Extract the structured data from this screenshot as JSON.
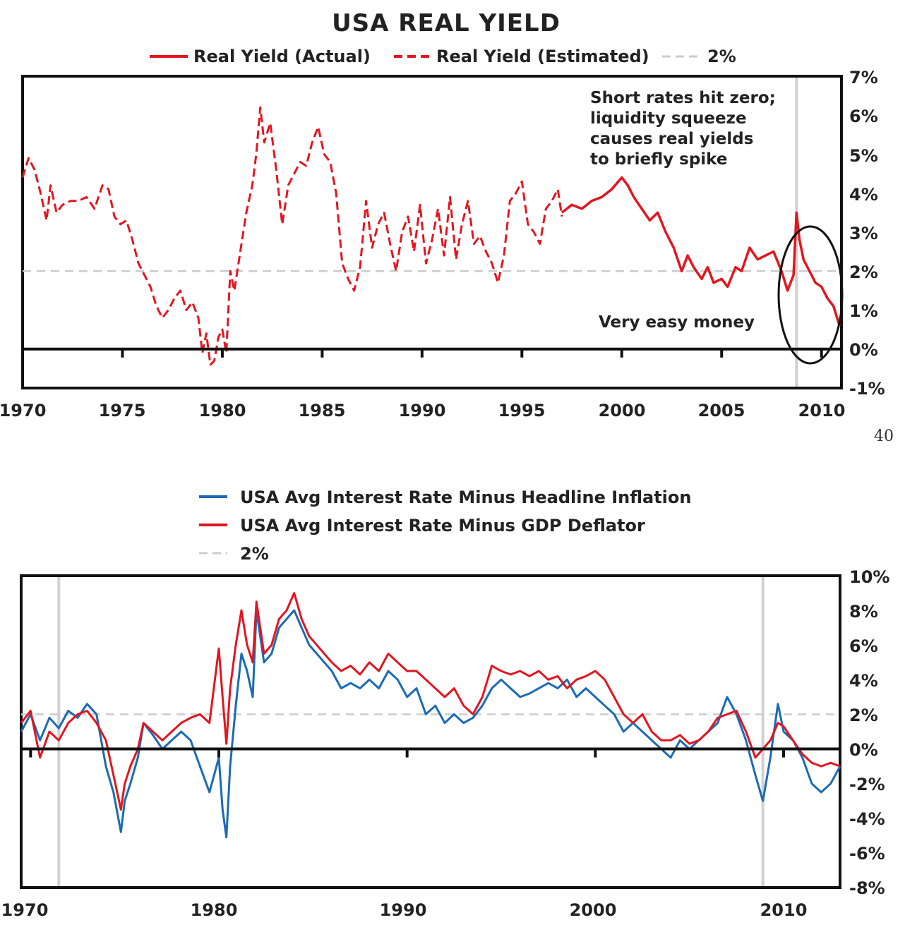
{
  "page_number": "40",
  "chart_data": [
    {
      "type": "line",
      "title": "USA REAL YIELD",
      "legend": [
        {
          "label": "Real Yield (Actual)",
          "style": "solid",
          "color": "#e3151f"
        },
        {
          "label": "Real Yield (Estimated)",
          "style": "dashed",
          "color": "#e3151f"
        },
        {
          "label": "2%",
          "style": "dashed",
          "color": "#cccccc"
        }
      ],
      "x_ticks": [
        "1970",
        "1975",
        "1980",
        "1985",
        "1990",
        "1995",
        "2000",
        "2005",
        "2010"
      ],
      "y_ticks": [
        "7%",
        "6%",
        "5%",
        "4%",
        "3%",
        "2%",
        "1%",
        "0%",
        "-1%"
      ],
      "xlim": [
        1970,
        2011
      ],
      "ylim": [
        -1,
        7
      ],
      "reference_line": 2,
      "vertical_marker": 2008.75,
      "annotations": [
        "Short rates hit zero;",
        "liquidity squeeze",
        "causes real yields",
        "to briefly spike",
        "Very easy money"
      ],
      "series": [
        {
          "name": "Real Yield (Estimated)",
          "style": "dashed",
          "color": "#e3151f",
          "x": [
            1970.0,
            1970.3,
            1970.6,
            1970.9,
            1971.2,
            1971.4,
            1971.7,
            1972.0,
            1972.4,
            1972.8,
            1973.2,
            1973.6,
            1974.0,
            1974.3,
            1974.6,
            1974.9,
            1975.2,
            1975.5,
            1975.8,
            1976.1,
            1976.4,
            1976.7,
            1977.0,
            1977.3,
            1977.6,
            1977.9,
            1978.2,
            1978.5,
            1978.8,
            1979.0,
            1979.2,
            1979.4,
            1979.6,
            1979.8,
            1980.0,
            1980.2,
            1980.4,
            1980.6,
            1980.9,
            1981.2,
            1981.5,
            1981.7,
            1981.9,
            1982.1,
            1982.4,
            1982.7,
            1983.0,
            1983.3,
            1983.6,
            1983.9,
            1984.2,
            1984.5,
            1984.8,
            1985.1,
            1985.4,
            1985.7,
            1986.0,
            1986.3,
            1986.6,
            1986.9,
            1987.2,
            1987.5,
            1987.8,
            1988.1,
            1988.4,
            1988.7,
            1989.0,
            1989.3,
            1989.6,
            1989.9,
            1990.2,
            1990.5,
            1990.8,
            1991.1,
            1991.4,
            1991.7,
            1992.0,
            1992.3,
            1992.6,
            1992.9,
            1993.2,
            1993.5,
            1993.8,
            1994.1,
            1994.4,
            1994.7,
            1995.0,
            1995.3,
            1995.6,
            1995.9,
            1996.2,
            1996.5,
            1996.8,
            1997.0
          ],
          "y": [
            4.4,
            4.9,
            4.6,
            4.0,
            3.3,
            4.2,
            3.5,
            3.7,
            3.8,
            3.8,
            3.9,
            3.6,
            4.2,
            4.1,
            3.4,
            3.2,
            3.3,
            2.8,
            2.2,
            1.9,
            1.6,
            1.1,
            0.8,
            1.0,
            1.3,
            1.5,
            1.0,
            1.2,
            0.8,
            -0.1,
            0.4,
            -0.4,
            -0.3,
            0.3,
            0.5,
            -0.1,
            2.0,
            1.5,
            2.5,
            3.5,
            4.2,
            5.0,
            6.2,
            5.3,
            5.8,
            4.6,
            3.2,
            4.2,
            4.5,
            4.8,
            4.7,
            5.3,
            5.7,
            5.0,
            4.8,
            4.0,
            2.2,
            1.8,
            1.5,
            2.1,
            3.8,
            2.6,
            3.2,
            3.5,
            2.7,
            2.0,
            3.0,
            3.4,
            2.5,
            3.7,
            2.2,
            2.8,
            3.6,
            2.4,
            3.9,
            2.3,
            3.2,
            3.8,
            2.7,
            2.9,
            2.5,
            2.2,
            1.7,
            2.4,
            3.8,
            4.0,
            4.3,
            3.2,
            3.0,
            2.7,
            3.6,
            3.8,
            4.1,
            3.4
          ]
        },
        {
          "name": "Real Yield (Actual)",
          "style": "solid",
          "color": "#e3151f",
          "x": [
            1997.0,
            1997.5,
            1998.0,
            1998.5,
            1999.0,
            1999.5,
            2000.0,
            2000.3,
            2000.6,
            2001.0,
            2001.4,
            2001.8,
            2002.2,
            2002.6,
            2003.0,
            2003.3,
            2003.6,
            2004.0,
            2004.3,
            2004.6,
            2005.0,
            2005.3,
            2005.7,
            2006.0,
            2006.4,
            2006.8,
            2007.2,
            2007.6,
            2008.0,
            2008.3,
            2008.6,
            2008.75,
            2008.9,
            2009.1,
            2009.4,
            2009.7,
            2010.0,
            2010.3,
            2010.6,
            2010.9
          ],
          "y": [
            3.5,
            3.7,
            3.6,
            3.8,
            3.9,
            4.1,
            4.4,
            4.2,
            3.9,
            3.6,
            3.3,
            3.5,
            3.0,
            2.6,
            2.0,
            2.4,
            2.1,
            1.8,
            2.1,
            1.7,
            1.8,
            1.6,
            2.1,
            2.0,
            2.6,
            2.3,
            2.4,
            2.5,
            2.0,
            1.5,
            1.9,
            3.5,
            2.8,
            2.3,
            2.0,
            1.7,
            1.6,
            1.3,
            1.1,
            0.6
          ]
        }
      ]
    },
    {
      "type": "line",
      "legend": [
        {
          "label": "USA Avg Interest Rate Minus Headline Inflation",
          "style": "solid",
          "color": "#1a6bb5"
        },
        {
          "label": "USA Avg Interest Rate Minus GDP Deflator",
          "style": "solid",
          "color": "#e3151f"
        },
        {
          "label": "2%",
          "style": "dashed",
          "color": "#cccccc"
        }
      ],
      "x_ticks": [
        "1970",
        "1980",
        "1990",
        "2000",
        "2010"
      ],
      "y_ticks": [
        "10%",
        "8%",
        "6%",
        "4%",
        "2%",
        "0%",
        "-2%",
        "-4%",
        "-6%",
        "-8%"
      ],
      "xlim": [
        1969.5,
        2013
      ],
      "ylim": [
        -8,
        10
      ],
      "reference_line": 2,
      "vertical_markers": [
        1971.5,
        2008.9
      ],
      "series": [
        {
          "name": "USA Avg Interest Rate Minus Headline Inflation",
          "color": "#1a6bb5",
          "x": [
            1969.5,
            1970.0,
            1970.5,
            1971.0,
            1971.5,
            1972.0,
            1972.5,
            1973.0,
            1973.5,
            1974.0,
            1974.4,
            1974.8,
            1975.0,
            1975.3,
            1975.7,
            1976.0,
            1976.5,
            1977.0,
            1977.5,
            1978.0,
            1978.5,
            1979.0,
            1979.5,
            1980.0,
            1980.2,
            1980.4,
            1980.6,
            1980.9,
            1981.2,
            1981.5,
            1981.8,
            1982.0,
            1982.4,
            1982.8,
            1983.2,
            1983.6,
            1984.0,
            1984.4,
            1984.8,
            1985.2,
            1985.6,
            1986.0,
            1986.5,
            1987.0,
            1987.5,
            1988.0,
            1988.5,
            1989.0,
            1989.5,
            1990.0,
            1990.5,
            1991.0,
            1991.5,
            1992.0,
            1992.5,
            1993.0,
            1993.5,
            1994.0,
            1994.5,
            1995.0,
            1995.5,
            1996.0,
            1996.5,
            1997.0,
            1997.5,
            1998.0,
            1998.5,
            1999.0,
            1999.5,
            2000.0,
            2000.5,
            2001.0,
            2001.5,
            2002.0,
            2002.5,
            2003.0,
            2003.5,
            2004.0,
            2004.5,
            2005.0,
            2005.5,
            2006.0,
            2006.5,
            2007.0,
            2007.5,
            2008.0,
            2008.5,
            2008.9,
            2009.3,
            2009.7,
            2010.0,
            2010.5,
            2011.0,
            2011.5,
            2012.0,
            2012.5,
            2013.0
          ],
          "y": [
            1.0,
            2.0,
            0.5,
            1.8,
            1.2,
            2.2,
            1.8,
            2.6,
            2.0,
            -1.0,
            -2.5,
            -4.8,
            -3.0,
            -2.0,
            -0.5,
            1.5,
            0.8,
            0.0,
            0.5,
            1.0,
            0.5,
            -1.0,
            -2.5,
            -0.5,
            -3.5,
            -5.1,
            -1.0,
            2.5,
            5.5,
            4.5,
            3.0,
            8.0,
            5.0,
            5.5,
            7.0,
            7.5,
            8.0,
            7.0,
            6.0,
            5.5,
            5.0,
            4.5,
            3.5,
            3.8,
            3.5,
            4.0,
            3.5,
            4.5,
            4.0,
            3.0,
            3.5,
            2.0,
            2.5,
            1.5,
            2.0,
            1.5,
            1.8,
            2.5,
            3.5,
            4.0,
            3.5,
            3.0,
            3.2,
            3.5,
            3.8,
            3.5,
            4.0,
            3.0,
            3.5,
            3.0,
            2.5,
            2.0,
            1.0,
            1.5,
            1.0,
            0.5,
            0.0,
            -0.5,
            0.5,
            0.0,
            0.5,
            1.0,
            1.5,
            3.0,
            2.0,
            0.5,
            -1.5,
            -3.0,
            -0.5,
            2.6,
            1.0,
            0.5,
            -0.5,
            -2.0,
            -2.5,
            -2.0,
            -1.0
          ]
        },
        {
          "name": "USA Avg Interest Rate Minus GDP Deflator",
          "color": "#e3151f",
          "x": [
            1969.5,
            1970.0,
            1970.5,
            1971.0,
            1971.5,
            1972.0,
            1972.5,
            1973.0,
            1973.5,
            1974.0,
            1974.4,
            1974.8,
            1975.0,
            1975.3,
            1975.7,
            1976.0,
            1976.5,
            1977.0,
            1977.5,
            1978.0,
            1978.5,
            1979.0,
            1979.5,
            1980.0,
            1980.2,
            1980.4,
            1980.6,
            1980.9,
            1981.2,
            1981.5,
            1981.8,
            1982.0,
            1982.4,
            1982.8,
            1983.2,
            1983.6,
            1984.0,
            1984.4,
            1984.8,
            1985.2,
            1985.6,
            1986.0,
            1986.5,
            1987.0,
            1987.5,
            1988.0,
            1988.5,
            1989.0,
            1989.5,
            1990.0,
            1990.5,
            1991.0,
            1991.5,
            1992.0,
            1992.5,
            1993.0,
            1993.5,
            1994.0,
            1994.5,
            1995.0,
            1995.5,
            1996.0,
            1996.5,
            1997.0,
            1997.5,
            1998.0,
            1998.5,
            1999.0,
            1999.5,
            2000.0,
            2000.5,
            2001.0,
            2001.5,
            2002.0,
            2002.5,
            2003.0,
            2003.5,
            2004.0,
            2004.5,
            2005.0,
            2005.5,
            2006.0,
            2006.5,
            2007.0,
            2007.5,
            2008.0,
            2008.5,
            2008.9,
            2009.3,
            2009.7,
            2010.0,
            2010.5,
            2011.0,
            2011.5,
            2012.0,
            2012.5,
            2013.0
          ],
          "y": [
            1.5,
            2.2,
            -0.5,
            1.0,
            0.5,
            1.5,
            2.0,
            2.2,
            1.5,
            0.5,
            -1.5,
            -3.5,
            -2.0,
            -1.0,
            0.0,
            1.5,
            1.0,
            0.5,
            1.0,
            1.5,
            1.8,
            2.0,
            1.5,
            5.8,
            3.0,
            0.3,
            3.5,
            6.0,
            8.0,
            6.0,
            5.0,
            8.5,
            5.5,
            6.0,
            7.5,
            8.0,
            9.0,
            7.5,
            6.5,
            6.0,
            5.5,
            5.0,
            4.5,
            4.8,
            4.3,
            5.0,
            4.5,
            5.5,
            5.0,
            4.5,
            4.5,
            4.0,
            3.5,
            3.0,
            3.5,
            2.5,
            2.0,
            3.0,
            4.8,
            4.5,
            4.3,
            4.5,
            4.2,
            4.5,
            4.0,
            4.2,
            3.5,
            4.0,
            4.2,
            4.5,
            4.0,
            3.0,
            2.0,
            1.5,
            2.0,
            1.0,
            0.5,
            0.5,
            0.8,
            0.3,
            0.5,
            1.0,
            1.8,
            2.0,
            2.2,
            1.0,
            -0.5,
            0.0,
            0.5,
            1.5,
            1.3,
            0.5,
            -0.3,
            -0.8,
            -1.0,
            -0.8,
            -1.0
          ]
        }
      ]
    }
  ]
}
